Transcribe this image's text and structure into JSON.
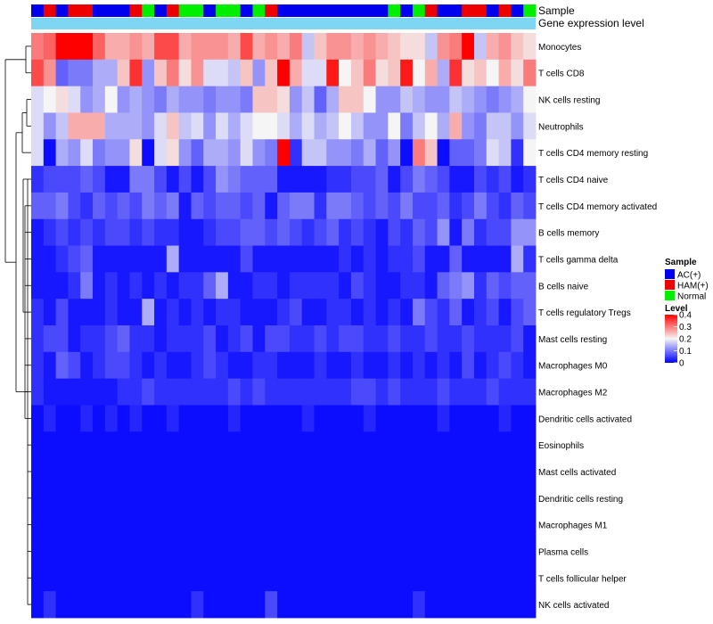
{
  "chart_data": {
    "type": "heatmap",
    "title": "",
    "annotation_tracks": [
      {
        "name": "Sample"
      },
      {
        "name": "Gene expression level"
      }
    ],
    "sample_groups": [
      "AC",
      "HAM",
      "AC",
      "HAM",
      "HAM",
      "AC",
      "AC",
      "AC",
      "HAM",
      "Normal",
      "AC",
      "HAM",
      "Normal",
      "Normal",
      "AC",
      "Normal",
      "Normal",
      "AC",
      "Normal",
      "HAM",
      "AC",
      "AC",
      "AC",
      "AC",
      "AC",
      "AC",
      "AC",
      "AC",
      "AC",
      "Normal",
      "AC",
      "Normal",
      "HAM",
      "AC",
      "AC",
      "HAM",
      "HAM",
      "AC",
      "HAM",
      "AC",
      "Normal"
    ],
    "rows": [
      "Monocytes",
      "T cells CD8",
      "NK cells resting",
      "Neutrophils",
      "T cells CD4 memory resting",
      "T cells CD4 naive",
      "T cells CD4 memory activated",
      "B cells memory",
      "T cells gamma delta",
      "B cells naive",
      "T cells regulatory  Tregs",
      "Mast cells resting",
      "Macrophages M0",
      "Macrophages M2",
      "Dendritic cells activated",
      "Eosinophils",
      "Mast cells activated",
      "Dendritic cells resting",
      "Macrophages M1",
      "Plasma cells",
      "T cells follicular helper",
      "NK cells activated"
    ],
    "values": [
      [
        0.3,
        0.32,
        0.4,
        0.4,
        0.4,
        0.32,
        0.26,
        0.26,
        0.28,
        0.26,
        0.34,
        0.34,
        0.26,
        0.28,
        0.28,
        0.28,
        0.26,
        0.34,
        0.26,
        0.28,
        0.26,
        0.3,
        0.16,
        0.24,
        0.28,
        0.28,
        0.26,
        0.28,
        0.26,
        0.24,
        0.22,
        0.22,
        0.16,
        0.28,
        0.3,
        0.4,
        0.16,
        0.26,
        0.28,
        0.24,
        0.22
      ],
      [
        0.34,
        0.28,
        0.08,
        0.1,
        0.1,
        0.14,
        0.14,
        0.24,
        0.36,
        0.12,
        0.24,
        0.3,
        0.22,
        0.28,
        0.18,
        0.18,
        0.16,
        0.24,
        0.12,
        0.24,
        0.4,
        0.26,
        0.18,
        0.18,
        0.38,
        0.2,
        0.24,
        0.3,
        0.22,
        0.24,
        0.38,
        0.2,
        0.26,
        0.14,
        0.36,
        0.22,
        0.24,
        0.2,
        0.26,
        0.22,
        0.3
      ],
      [
        0.18,
        0.2,
        0.22,
        0.18,
        0.12,
        0.14,
        0.2,
        0.12,
        0.14,
        0.12,
        0.1,
        0.14,
        0.12,
        0.12,
        0.1,
        0.12,
        0.12,
        0.1,
        0.24,
        0.24,
        0.22,
        0.12,
        0.16,
        0.08,
        0.14,
        0.24,
        0.24,
        0.2,
        0.12,
        0.12,
        0.16,
        0.14,
        0.12,
        0.12,
        0.16,
        0.14,
        0.12,
        0.1,
        0.12,
        0.14,
        0.2
      ],
      [
        0.18,
        0.12,
        0.16,
        0.26,
        0.26,
        0.26,
        0.14,
        0.14,
        0.14,
        0.12,
        0.18,
        0.24,
        0.16,
        0.18,
        0.12,
        0.18,
        0.14,
        0.18,
        0.2,
        0.2,
        0.18,
        0.14,
        0.18,
        0.14,
        0.16,
        0.2,
        0.16,
        0.12,
        0.12,
        0.2,
        0.1,
        0.16,
        0.2,
        0.14,
        0.26,
        0.12,
        0.1,
        0.16,
        0.16,
        0.12,
        0.18
      ],
      [
        0.18,
        0.01,
        0.14,
        0.12,
        0.18,
        0.1,
        0.12,
        0.12,
        0.22,
        0.01,
        0.18,
        0.22,
        0.12,
        0.08,
        0.14,
        0.14,
        0.12,
        0.18,
        0.12,
        0.1,
        0.4,
        0.04,
        0.16,
        0.16,
        0.12,
        0.12,
        0.1,
        0.14,
        0.08,
        0.12,
        0.01,
        0.3,
        0.24,
        0.01,
        0.08,
        0.08,
        0.1,
        0.18,
        0.16,
        0.04,
        0.2
      ],
      [
        0.04,
        0.06,
        0.06,
        0.06,
        0.08,
        0.06,
        0.02,
        0.02,
        0.1,
        0.1,
        0.06,
        0.02,
        0.06,
        0.02,
        0.06,
        0.12,
        0.1,
        0.08,
        0.08,
        0.08,
        0.02,
        0.02,
        0.02,
        0.02,
        0.04,
        0.04,
        0.06,
        0.06,
        0.08,
        0.02,
        0.06,
        0.1,
        0.08,
        0.06,
        0.02,
        0.02,
        0.06,
        0.04,
        0.06,
        0.02,
        0.04
      ],
      [
        0.08,
        0.08,
        0.1,
        0.06,
        0.04,
        0.08,
        0.06,
        0.08,
        0.06,
        0.1,
        0.08,
        0.1,
        0.02,
        0.08,
        0.06,
        0.08,
        0.08,
        0.06,
        0.08,
        0.02,
        0.08,
        0.1,
        0.1,
        0.04,
        0.1,
        0.1,
        0.08,
        0.06,
        0.08,
        0.06,
        0.1,
        0.06,
        0.06,
        0.08,
        0.04,
        0.06,
        0.1,
        0.06,
        0.04,
        0.08,
        0.06
      ],
      [
        0.02,
        0.04,
        0.06,
        0.04,
        0.06,
        0.04,
        0.06,
        0.06,
        0.04,
        0.06,
        0.04,
        0.04,
        0.02,
        0.02,
        0.04,
        0.06,
        0.06,
        0.08,
        0.08,
        0.06,
        0.08,
        0.06,
        0.04,
        0.06,
        0.08,
        0.04,
        0.06,
        0.04,
        0.02,
        0.06,
        0.04,
        0.08,
        0.06,
        0.12,
        0.02,
        0.1,
        0.04,
        0.06,
        0.06,
        0.12,
        0.12
      ],
      [
        0.02,
        0.02,
        0.04,
        0.06,
        0.08,
        0.02,
        0.02,
        0.02,
        0.02,
        0.02,
        0.02,
        0.14,
        0.02,
        0.02,
        0.02,
        0.02,
        0.02,
        0.06,
        0.02,
        0.02,
        0.02,
        0.02,
        0.02,
        0.02,
        0.02,
        0.04,
        0.02,
        0.04,
        0.02,
        0.04,
        0.04,
        0.06,
        0.02,
        0.02,
        0.08,
        0.02,
        0.02,
        0.02,
        0.02,
        0.14,
        0.04
      ],
      [
        0.02,
        0.02,
        0.02,
        0.04,
        0.1,
        0.02,
        0.04,
        0.02,
        0.04,
        0.02,
        0.04,
        0.02,
        0.04,
        0.04,
        0.08,
        0.14,
        0.02,
        0.02,
        0.04,
        0.04,
        0.02,
        0.04,
        0.04,
        0.04,
        0.04,
        0.02,
        0.06,
        0.04,
        0.02,
        0.02,
        0.04,
        0.04,
        0.02,
        0.08,
        0.1,
        0.12,
        0.04,
        0.08,
        0.06,
        0.08,
        0.08
      ],
      [
        0.04,
        0.02,
        0.06,
        0.02,
        0.02,
        0.02,
        0.04,
        0.02,
        0.02,
        0.14,
        0.02,
        0.04,
        0.02,
        0.04,
        0.02,
        0.04,
        0.04,
        0.02,
        0.02,
        0.02,
        0.04,
        0.06,
        0.02,
        0.02,
        0.04,
        0.04,
        0.02,
        0.04,
        0.02,
        0.04,
        0.02,
        0.1,
        0.06,
        0.04,
        0.08,
        0.02,
        0.04,
        0.06,
        0.02,
        0.06,
        0.08
      ],
      [
        0.04,
        0.06,
        0.06,
        0.02,
        0.04,
        0.04,
        0.06,
        0.08,
        0.04,
        0.04,
        0.02,
        0.04,
        0.04,
        0.04,
        0.06,
        0.02,
        0.04,
        0.06,
        0.02,
        0.06,
        0.06,
        0.04,
        0.04,
        0.06,
        0.04,
        0.06,
        0.06,
        0.04,
        0.04,
        0.06,
        0.04,
        0.04,
        0.06,
        0.04,
        0.04,
        0.06,
        0.04,
        0.04,
        0.04,
        0.06,
        0.02
      ],
      [
        0.04,
        0.02,
        0.08,
        0.06,
        0.02,
        0.04,
        0.06,
        0.06,
        0.04,
        0.02,
        0.04,
        0.02,
        0.02,
        0.04,
        0.06,
        0.04,
        0.02,
        0.02,
        0.04,
        0.04,
        0.02,
        0.02,
        0.02,
        0.04,
        0.02,
        0.02,
        0.04,
        0.02,
        0.02,
        0.04,
        0.02,
        0.04,
        0.02,
        0.04,
        0.02,
        0.06,
        0.02,
        0.04,
        0.06,
        0.04,
        0.02
      ],
      [
        0.04,
        0.02,
        0.02,
        0.02,
        0.02,
        0.02,
        0.02,
        0.04,
        0.04,
        0.06,
        0.04,
        0.04,
        0.04,
        0.04,
        0.04,
        0.04,
        0.06,
        0.04,
        0.06,
        0.04,
        0.04,
        0.04,
        0.04,
        0.04,
        0.04,
        0.04,
        0.06,
        0.06,
        0.04,
        0.06,
        0.04,
        0.04,
        0.04,
        0.06,
        0.04,
        0.04,
        0.04,
        0.06,
        0.04,
        0.04,
        0.04
      ],
      [
        0.01,
        0.03,
        0.01,
        0.01,
        0.03,
        0.01,
        0.03,
        0.01,
        0.03,
        0.01,
        0.01,
        0.03,
        0.01,
        0.01,
        0.01,
        0.01,
        0.03,
        0.01,
        0.01,
        0.01,
        0.01,
        0.01,
        0.03,
        0.01,
        0.01,
        0.01,
        0.01,
        0.03,
        0.01,
        0.01,
        0.01,
        0.01,
        0.01,
        0.03,
        0.01,
        0.01,
        0.01,
        0.01,
        0.03,
        0.01,
        0.01
      ],
      [
        0.01,
        0.01,
        0.01,
        0.01,
        0.01,
        0.01,
        0.01,
        0.01,
        0.01,
        0.01,
        0.01,
        0.01,
        0.01,
        0.01,
        0.01,
        0.01,
        0.01,
        0.01,
        0.01,
        0.01,
        0.01,
        0.01,
        0.01,
        0.01,
        0.01,
        0.01,
        0.01,
        0.01,
        0.01,
        0.01,
        0.01,
        0.01,
        0.01,
        0.01,
        0.01,
        0.01,
        0.01,
        0.01,
        0.01,
        0.01,
        0.01
      ],
      [
        0.01,
        0.01,
        0.01,
        0.01,
        0.01,
        0.01,
        0.01,
        0.01,
        0.01,
        0.01,
        0.01,
        0.01,
        0.01,
        0.01,
        0.01,
        0.01,
        0.01,
        0.01,
        0.01,
        0.01,
        0.01,
        0.01,
        0.01,
        0.01,
        0.01,
        0.01,
        0.01,
        0.01,
        0.01,
        0.01,
        0.01,
        0.01,
        0.01,
        0.01,
        0.01,
        0.01,
        0.01,
        0.01,
        0.01,
        0.01,
        0.01
      ],
      [
        0.01,
        0.01,
        0.01,
        0.01,
        0.01,
        0.01,
        0.01,
        0.01,
        0.01,
        0.01,
        0.01,
        0.01,
        0.01,
        0.01,
        0.01,
        0.01,
        0.01,
        0.01,
        0.01,
        0.01,
        0.01,
        0.01,
        0.01,
        0.01,
        0.01,
        0.01,
        0.01,
        0.01,
        0.01,
        0.01,
        0.01,
        0.01,
        0.01,
        0.01,
        0.01,
        0.01,
        0.01,
        0.01,
        0.01,
        0.01,
        0.01
      ],
      [
        0.01,
        0.01,
        0.01,
        0.01,
        0.01,
        0.01,
        0.01,
        0.01,
        0.01,
        0.01,
        0.01,
        0.01,
        0.01,
        0.01,
        0.01,
        0.01,
        0.01,
        0.01,
        0.01,
        0.01,
        0.01,
        0.01,
        0.01,
        0.01,
        0.01,
        0.01,
        0.01,
        0.01,
        0.01,
        0.01,
        0.01,
        0.01,
        0.01,
        0.01,
        0.01,
        0.01,
        0.01,
        0.01,
        0.01,
        0.01,
        0.01
      ],
      [
        0.01,
        0.01,
        0.01,
        0.01,
        0.01,
        0.01,
        0.01,
        0.01,
        0.01,
        0.01,
        0.01,
        0.01,
        0.01,
        0.01,
        0.01,
        0.01,
        0.01,
        0.01,
        0.01,
        0.01,
        0.01,
        0.01,
        0.01,
        0.01,
        0.01,
        0.01,
        0.01,
        0.01,
        0.01,
        0.01,
        0.01,
        0.01,
        0.01,
        0.01,
        0.01,
        0.01,
        0.01,
        0.01,
        0.01,
        0.01,
        0.01
      ],
      [
        0.01,
        0.01,
        0.01,
        0.01,
        0.01,
        0.01,
        0.01,
        0.01,
        0.01,
        0.01,
        0.01,
        0.01,
        0.01,
        0.01,
        0.01,
        0.01,
        0.01,
        0.01,
        0.01,
        0.01,
        0.01,
        0.01,
        0.01,
        0.01,
        0.01,
        0.01,
        0.01,
        0.01,
        0.01,
        0.01,
        0.01,
        0.01,
        0.01,
        0.01,
        0.01,
        0.01,
        0.01,
        0.01,
        0.01,
        0.01,
        0.01
      ],
      [
        0.01,
        0.04,
        0.01,
        0.01,
        0.01,
        0.01,
        0.01,
        0.01,
        0.01,
        0.01,
        0.01,
        0.01,
        0.01,
        0.04,
        0.01,
        0.01,
        0.01,
        0.01,
        0.01,
        0.06,
        0.01,
        0.01,
        0.01,
        0.01,
        0.01,
        0.01,
        0.01,
        0.01,
        0.01,
        0.01,
        0.01,
        0.04,
        0.01,
        0.01,
        0.01,
        0.01,
        0.01,
        0.01,
        0.01,
        0.01,
        0.01
      ]
    ],
    "legend_sample": {
      "title": "Sample",
      "entries": [
        {
          "key": "AC",
          "label": "AC(+)",
          "color": "#0000ee"
        },
        {
          "key": "HAM",
          "label": "HAM(+)",
          "color": "#ee0000"
        },
        {
          "key": "Normal",
          "label": "Normal",
          "color": "#00ee00"
        }
      ]
    },
    "legend_level": {
      "title": "Level",
      "ticks": [
        0.4,
        0.3,
        0.2,
        0.1,
        0
      ],
      "range": [
        0,
        0.4
      ],
      "colors": {
        "low": "#0000ff",
        "mid": "#f5f5f5",
        "high": "#ff0000"
      }
    },
    "expression_track_color": "#7fd6f2"
  }
}
